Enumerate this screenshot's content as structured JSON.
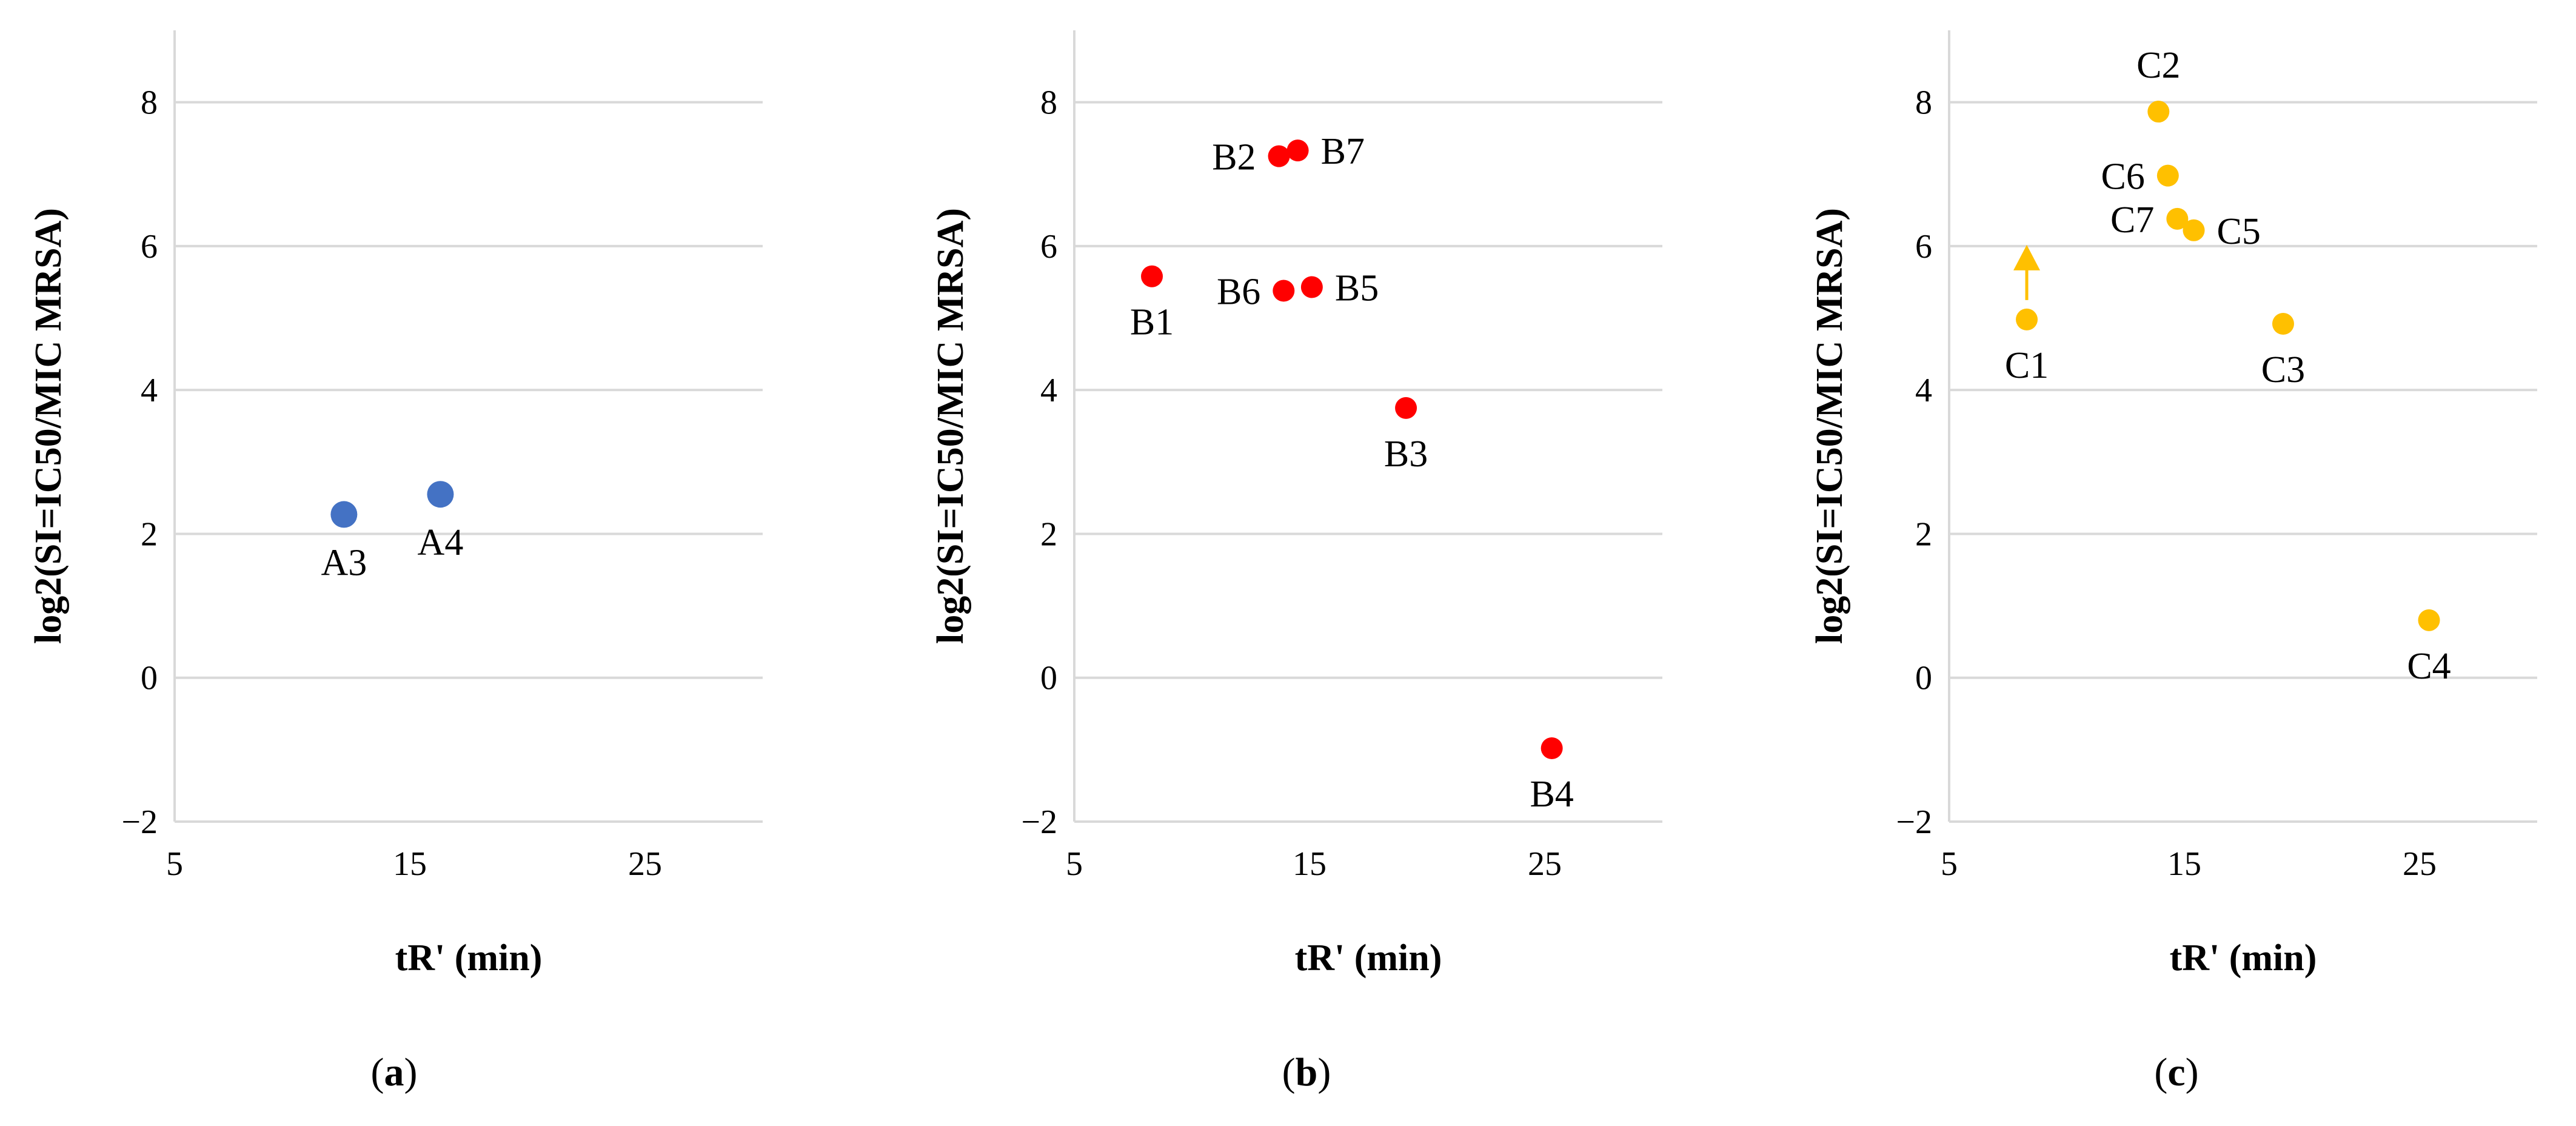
{
  "chart_data": [
    {
      "type": "scatter",
      "panel": "a",
      "color": "#4472c4",
      "xlabel": "tR' (min)",
      "ylabel": "log2(SI=IC50/MIC MRSA)",
      "xlim": [
        5,
        30
      ],
      "ylim": [
        -2,
        9
      ],
      "xticks": [
        5,
        15,
        25
      ],
      "yticks": [
        -2,
        0,
        2,
        4,
        6,
        8
      ],
      "points": [
        {
          "label": "A3",
          "x": 12.2,
          "y": 2.27,
          "label_pos": "below"
        },
        {
          "label": "A4",
          "x": 16.3,
          "y": 2.55,
          "label_pos": "below"
        }
      ],
      "caption_open": "(",
      "caption_letter": "a",
      "caption_close": ")"
    },
    {
      "type": "scatter",
      "panel": "b",
      "color": "#ff0000",
      "xlabel": "tR' (min)",
      "ylabel": "log2(SI=IC50/MIC MRSA)",
      "xlim": [
        5,
        30
      ],
      "ylim": [
        -2,
        9
      ],
      "xticks": [
        5,
        15,
        25
      ],
      "yticks": [
        -2,
        0,
        2,
        4,
        6,
        8
      ],
      "points": [
        {
          "label": "B1",
          "x": 8.3,
          "y": 5.58,
          "label_pos": "below"
        },
        {
          "label": "B2",
          "x": 13.7,
          "y": 7.25,
          "label_pos": "left"
        },
        {
          "label": "B7",
          "x": 14.5,
          "y": 7.33,
          "label_pos": "right"
        },
        {
          "label": "B6",
          "x": 13.9,
          "y": 5.38,
          "label_pos": "left"
        },
        {
          "label": "B5",
          "x": 15.1,
          "y": 5.43,
          "label_pos": "right"
        },
        {
          "label": "B3",
          "x": 19.1,
          "y": 3.75,
          "label_pos": "below"
        },
        {
          "label": "B4",
          "x": 25.3,
          "y": -0.98,
          "label_pos": "below"
        }
      ],
      "caption_open": "(",
      "caption_letter": "b",
      "caption_close": ")"
    },
    {
      "type": "scatter",
      "panel": "c",
      "color": "#ffc000",
      "xlabel": "tR' (min)",
      "ylabel": "log2(SI=IC50/MIC MRSA)",
      "xlim": [
        5,
        30
      ],
      "ylim": [
        -2,
        9
      ],
      "xticks": [
        5,
        15,
        25
      ],
      "yticks": [
        -2,
        0,
        2,
        4,
        6,
        8
      ],
      "points": [
        {
          "label": "C1",
          "x": 8.3,
          "y": 4.98,
          "label_pos": "below",
          "arrow_to": 5.95
        },
        {
          "label": "C2",
          "x": 13.9,
          "y": 7.87,
          "label_pos": "above"
        },
        {
          "label": "C6",
          "x": 14.3,
          "y": 6.98,
          "label_pos": "left"
        },
        {
          "label": "C7",
          "x": 14.7,
          "y": 6.38,
          "label_pos": "left"
        },
        {
          "label": "C5",
          "x": 15.4,
          "y": 6.22,
          "label_pos": "right"
        },
        {
          "label": "C3",
          "x": 19.2,
          "y": 4.92,
          "label_pos": "below"
        },
        {
          "label": "C4",
          "x": 25.4,
          "y": 0.8,
          "label_pos": "below"
        }
      ],
      "caption_open": "(",
      "caption_letter": "c",
      "caption_close": ")"
    }
  ]
}
